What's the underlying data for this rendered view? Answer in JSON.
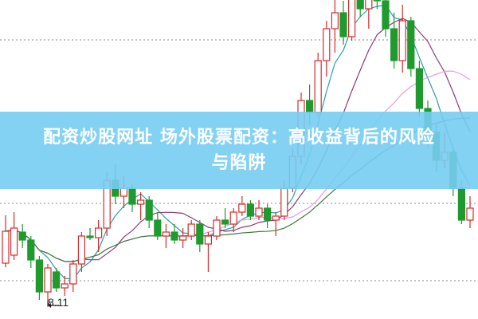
{
  "banner": {
    "line1": "配资炒股网址 场外股票配资：高收益背后的风险",
    "line2": "与陷阱"
  },
  "chart_data": {
    "type": "candlestick",
    "ohlc_order": [
      "open",
      "high",
      "low",
      "close"
    ],
    "candles": [
      [
        8.66,
        9.26,
        8.61,
        9.06
      ],
      [
        8.76,
        9.3,
        8.7,
        9.1
      ],
      [
        9.05,
        9.15,
        8.85,
        8.95
      ],
      [
        8.95,
        9.0,
        8.6,
        8.7
      ],
      [
        8.7,
        8.75,
        8.2,
        8.3
      ],
      [
        8.3,
        8.65,
        8.11,
        8.6
      ],
      [
        8.55,
        8.6,
        8.3,
        8.35
      ],
      [
        8.35,
        8.5,
        8.25,
        8.4
      ],
      [
        8.4,
        8.7,
        8.3,
        8.65
      ],
      [
        8.65,
        9.05,
        8.55,
        9.0
      ],
      [
        9.0,
        9.1,
        8.95,
        8.98
      ],
      [
        8.98,
        9.2,
        8.8,
        9.1
      ],
      [
        9.1,
        9.8,
        9.0,
        9.7
      ],
      [
        9.7,
        9.9,
        9.4,
        9.5
      ],
      [
        9.5,
        9.75,
        9.35,
        9.6
      ],
      [
        9.6,
        9.65,
        9.3,
        9.4
      ],
      [
        9.4,
        9.55,
        9.2,
        9.45
      ],
      [
        9.45,
        9.5,
        9.1,
        9.2
      ],
      [
        9.2,
        9.3,
        8.95,
        9.0
      ],
      [
        9.0,
        9.15,
        8.85,
        9.05
      ],
      [
        9.05,
        9.15,
        8.9,
        8.95
      ],
      [
        8.95,
        9.1,
        8.85,
        9.0
      ],
      [
        9.0,
        9.2,
        8.95,
        9.15
      ],
      [
        9.15,
        9.2,
        8.8,
        8.9
      ],
      [
        8.9,
        9.05,
        8.55,
        9.0
      ],
      [
        9.0,
        9.25,
        8.95,
        9.2
      ],
      [
        9.2,
        9.35,
        9.1,
        9.15
      ],
      [
        9.15,
        9.35,
        9.05,
        9.3
      ],
      [
        9.3,
        9.5,
        9.25,
        9.4
      ],
      [
        9.4,
        9.45,
        9.2,
        9.25
      ],
      [
        9.25,
        9.45,
        9.2,
        9.35
      ],
      [
        9.35,
        9.4,
        9.1,
        9.2
      ],
      [
        9.2,
        9.3,
        9.0,
        9.25
      ],
      [
        9.25,
        9.7,
        9.2,
        9.6
      ],
      [
        9.6,
        10.1,
        9.55,
        10.0
      ],
      [
        10.0,
        10.8,
        9.9,
        10.7
      ],
      [
        10.7,
        10.9,
        10.4,
        10.55
      ],
      [
        10.55,
        11.3,
        10.5,
        11.2
      ],
      [
        11.2,
        11.7,
        11.0,
        11.6
      ],
      [
        11.6,
        12.1,
        11.3,
        11.8
      ],
      [
        11.8,
        11.95,
        11.4,
        11.5
      ],
      [
        11.5,
        12.1,
        11.45,
        12.0
      ],
      [
        12.0,
        12.3,
        11.75,
        11.85
      ],
      [
        11.85,
        12.2,
        11.6,
        12.1
      ],
      [
        12.1,
        12.4,
        11.85,
        11.95
      ],
      [
        11.95,
        12.2,
        11.5,
        11.6
      ],
      [
        11.6,
        11.8,
        11.1,
        11.2
      ],
      [
        11.2,
        11.9,
        11.05,
        11.7
      ],
      [
        11.7,
        11.75,
        11.0,
        11.1
      ],
      [
        11.1,
        11.2,
        10.5,
        10.6
      ],
      [
        10.6,
        10.7,
        10.1,
        10.3
      ],
      [
        10.3,
        10.4,
        9.8,
        9.95
      ],
      [
        9.95,
        10.3,
        9.85,
        10.05
      ],
      [
        10.05,
        10.1,
        9.5,
        9.6
      ],
      [
        9.6,
        9.7,
        9.15,
        9.2
      ],
      [
        9.2,
        9.5,
        9.1,
        9.35
      ]
    ],
    "low_annotation": "8.11",
    "moving_averages": [
      {
        "period": 5,
        "color": "#2aa0a8"
      },
      {
        "period": 10,
        "color": "#8a3c78"
      },
      {
        "period": 20,
        "color": "#e79ae0"
      },
      {
        "period": 30,
        "color": "#3c7a3c"
      }
    ],
    "up_color": "#d62b2b",
    "down_color": "#1e9a2e",
    "grid_lines": "dotted",
    "grid_prices": [
      11.46,
      9.41,
      8.44
    ]
  }
}
